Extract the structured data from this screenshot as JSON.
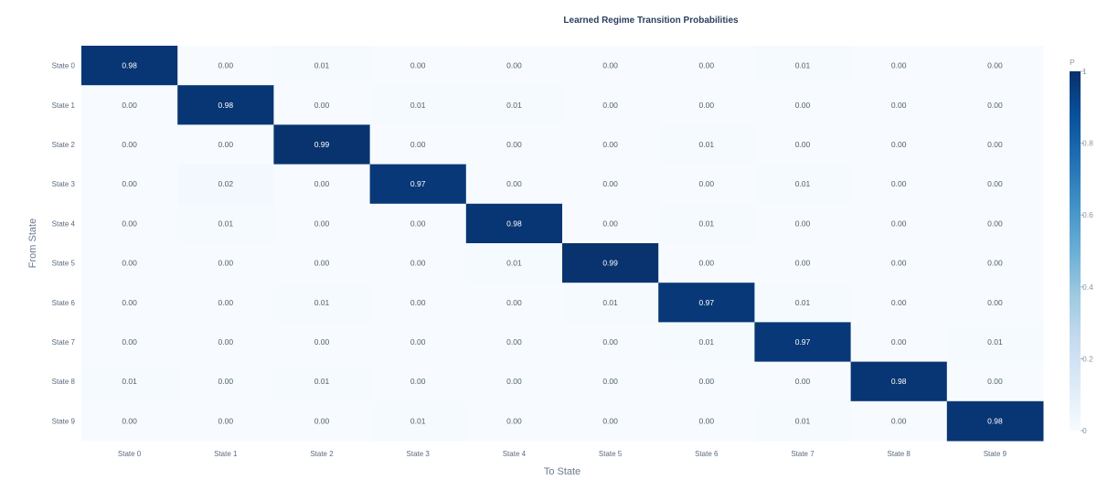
{
  "chart_data": {
    "type": "heatmap",
    "title": "Learned Regime Transition Probabilities",
    "xlabel": "To State",
    "ylabel": "From State",
    "x_categories": [
      "State 0",
      "State 1",
      "State 2",
      "State 3",
      "State 4",
      "State 5",
      "State 6",
      "State 7",
      "State 8",
      "State 9"
    ],
    "y_categories": [
      "State 0",
      "State 1",
      "State 2",
      "State 3",
      "State 4",
      "State 5",
      "State 6",
      "State 7",
      "State 8",
      "State 9"
    ],
    "values": [
      [
        0.98,
        0.0,
        0.01,
        0.0,
        0.0,
        0.0,
        0.0,
        0.01,
        0.0,
        0.0
      ],
      [
        0.0,
        0.98,
        0.0,
        0.01,
        0.01,
        0.0,
        0.0,
        0.0,
        0.0,
        0.0
      ],
      [
        0.0,
        0.0,
        0.99,
        0.0,
        0.0,
        0.0,
        0.01,
        0.0,
        0.0,
        0.0
      ],
      [
        0.0,
        0.02,
        0.0,
        0.97,
        0.0,
        0.0,
        0.0,
        0.01,
        0.0,
        0.0
      ],
      [
        0.0,
        0.01,
        0.0,
        0.0,
        0.98,
        0.0,
        0.01,
        0.0,
        0.0,
        0.0
      ],
      [
        0.0,
        0.0,
        0.0,
        0.0,
        0.01,
        0.99,
        0.0,
        0.0,
        0.0,
        0.0
      ],
      [
        0.0,
        0.0,
        0.01,
        0.0,
        0.0,
        0.01,
        0.97,
        0.01,
        0.0,
        0.0
      ],
      [
        0.0,
        0.0,
        0.0,
        0.0,
        0.0,
        0.0,
        0.01,
        0.97,
        0.0,
        0.01
      ],
      [
        0.01,
        0.0,
        0.01,
        0.0,
        0.0,
        0.0,
        0.0,
        0.0,
        0.98,
        0.0
      ],
      [
        0.0,
        0.0,
        0.0,
        0.01,
        0.0,
        0.0,
        0.0,
        0.01,
        0.0,
        0.98
      ]
    ],
    "colorscale": [
      "#f7fbff",
      "#deebf7",
      "#c6dbef",
      "#9ecae1",
      "#6baed6",
      "#4292c6",
      "#2171b5",
      "#08519c",
      "#08306b"
    ],
    "colorbar": {
      "title": "P",
      "range": [
        0,
        1
      ],
      "ticks": [
        0,
        0.2,
        0.4,
        0.6,
        0.8,
        1
      ],
      "tick_labels": [
        "0",
        "0.2",
        "0.4",
        "0.6",
        "0.8",
        "1"
      ]
    },
    "zlim": [
      0,
      1
    ]
  }
}
